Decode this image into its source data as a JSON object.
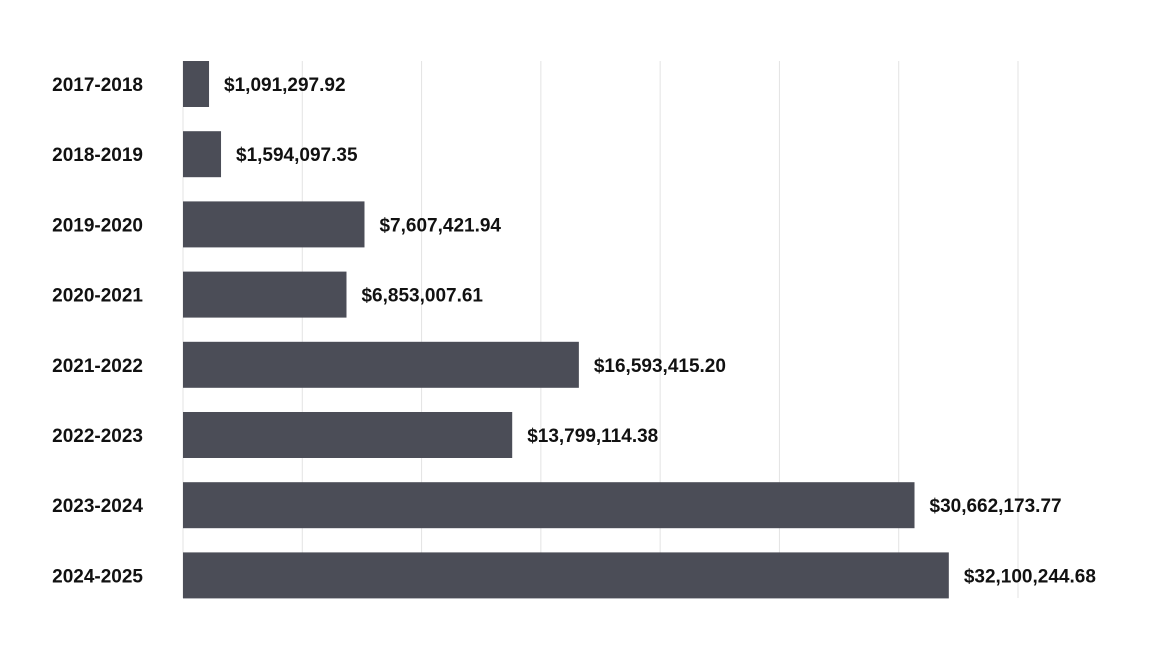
{
  "chart_data": {
    "type": "bar",
    "orientation": "horizontal",
    "categories": [
      "2017-2018",
      "2018-2019",
      "2019-2020",
      "2020-2021",
      "2021-2022",
      "2022-2023",
      "2023-2024",
      "2024-2025"
    ],
    "values": [
      1091297.92,
      1594097.35,
      7607421.94,
      6853007.61,
      16593415.2,
      13799114.38,
      30662173.77,
      32100244.68
    ],
    "data_labels": [
      "$1,091,297.92",
      "$1,594,097.35",
      "$7,607,421.94",
      "$6,853,007.61",
      "$16,593,415.20",
      "$13,799,114.38",
      "$30,662,173.77",
      "$32,100,244.68"
    ],
    "title": "",
    "xlabel": "",
    "ylabel": "",
    "xlim": [
      0,
      35000000
    ],
    "grid_step": 5000000,
    "grid": true,
    "bar_color": "#4b4d57",
    "grid_color": "#e3e3e3"
  }
}
